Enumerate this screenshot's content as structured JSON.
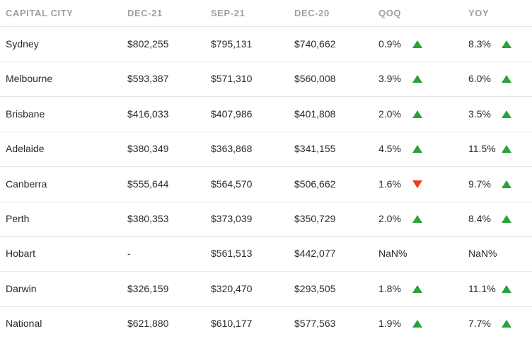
{
  "headers": [
    "CAPITAL CITY",
    "DEC-21",
    "SEP-21",
    "DEC-20",
    "QOQ",
    "YOY"
  ],
  "colors": {
    "up": "#2aa13a",
    "down": "#e8401c",
    "header_text": "#9aa0a6"
  },
  "rows": [
    {
      "city": "Sydney",
      "dec21": "$802,255",
      "sep21": "$795,131",
      "dec20": "$740,662",
      "qoq": "0.9%",
      "qoq_dir": "up",
      "yoy": "8.3%",
      "yoy_dir": "up"
    },
    {
      "city": "Melbourne",
      "dec21": "$593,387",
      "sep21": "$571,310",
      "dec20": "$560,008",
      "qoq": "3.9%",
      "qoq_dir": "up",
      "yoy": "6.0%",
      "yoy_dir": "up"
    },
    {
      "city": "Brisbane",
      "dec21": "$416,033",
      "sep21": "$407,986",
      "dec20": "$401,808",
      "qoq": "2.0%",
      "qoq_dir": "up",
      "yoy": "3.5%",
      "yoy_dir": "up"
    },
    {
      "city": "Adelaide",
      "dec21": "$380,349",
      "sep21": "$363,868",
      "dec20": "$341,155",
      "qoq": "4.5%",
      "qoq_dir": "up",
      "yoy": "11.5%",
      "yoy_dir": "up"
    },
    {
      "city": "Canberra",
      "dec21": "$555,644",
      "sep21": "$564,570",
      "dec20": "$506,662",
      "qoq": "1.6%",
      "qoq_dir": "down",
      "yoy": "9.7%",
      "yoy_dir": "up"
    },
    {
      "city": "Perth",
      "dec21": "$380,353",
      "sep21": "$373,039",
      "dec20": "$350,729",
      "qoq": "2.0%",
      "qoq_dir": "up",
      "yoy": "8.4%",
      "yoy_dir": "up"
    },
    {
      "city": "Hobart",
      "dec21": "-",
      "sep21": "$561,513",
      "dec20": "$442,077",
      "qoq": "NaN%",
      "qoq_dir": "",
      "yoy": "NaN%",
      "yoy_dir": ""
    },
    {
      "city": "Darwin",
      "dec21": "$326,159",
      "sep21": "$320,470",
      "dec20": "$293,505",
      "qoq": "1.8%",
      "qoq_dir": "up",
      "yoy": "11.1%",
      "yoy_dir": "up"
    },
    {
      "city": "National",
      "dec21": "$621,880",
      "sep21": "$610,177",
      "dec20": "$577,563",
      "qoq": "1.9%",
      "qoq_dir": "up",
      "yoy": "7.7%",
      "yoy_dir": "up"
    }
  ]
}
